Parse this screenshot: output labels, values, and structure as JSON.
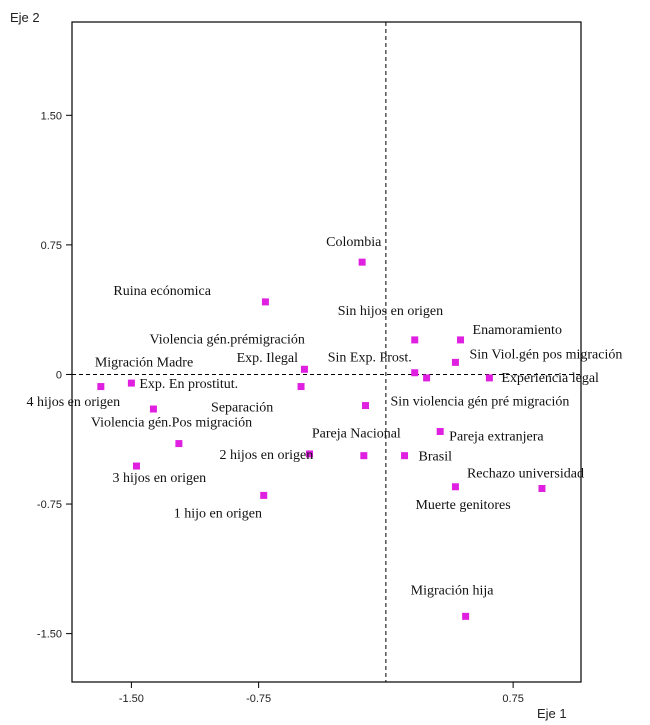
{
  "chart_data": {
    "type": "scatter",
    "xlabel": "Eje 1",
    "ylabel": "Eje 2",
    "xlim": [
      -1.85,
      1.15
    ],
    "ylim": [
      -1.78,
      2.04
    ],
    "x_ticks": [
      {
        "value": -1.5,
        "label": "-1.50"
      },
      {
        "value": -0.75,
        "label": "-0.75"
      },
      {
        "value": 0.75,
        "label": "0.75"
      }
    ],
    "y_ticks": [
      {
        "value": 1.5,
        "label": "1.50"
      },
      {
        "value": 0.75,
        "label": "0.75"
      },
      {
        "value": 0,
        "label": "0"
      },
      {
        "value": -0.75,
        "label": "-0.75"
      },
      {
        "value": -1.5,
        "label": "-1.50"
      }
    ],
    "reference_lines": {
      "x": 0,
      "y": 0,
      "style": "dashed"
    },
    "marker_color": "#e020e0",
    "points": [
      {
        "label": "Colombia",
        "x": -0.14,
        "y": 0.65
      },
      {
        "label": "Ruina ecónomica",
        "x": -0.71,
        "y": 0.42
      },
      {
        "label": "Sin hijos en origen",
        "x": 0.17,
        "y": 0.2
      },
      {
        "label": "Enamoramiento",
        "x": 0.44,
        "y": 0.2
      },
      {
        "label": "Sin Viol.gén pos migración",
        "x": 0.41,
        "y": 0.07
      },
      {
        "label": "Violencia gén.prémigración",
        "x": -0.48,
        "y": 0.03
      },
      {
        "label": "Sin Exp. Prost.",
        "x": 0.17,
        "y": 0.01
      },
      {
        "label": "Experiencia legal",
        "x": 0.61,
        "y": -0.02
      },
      {
        "label": "Exp. Ilegal",
        "x": 0.24,
        "y": -0.02
      },
      {
        "label": "Migración Madre",
        "x": -1.68,
        "y": -0.07
      },
      {
        "label": "Exp. En prostitut.",
        "x": -1.5,
        "y": -0.05
      },
      {
        "label": "Separación",
        "x": -0.5,
        "y": -0.07
      },
      {
        "label": "Sin violencia gén pré migración",
        "x": -0.12,
        "y": -0.18
      },
      {
        "label": "4 hijos en origen",
        "x": -1.37,
        "y": -0.2
      },
      {
        "label": "Violencia gén.Pos migración",
        "x": -1.22,
        "y": -0.4
      },
      {
        "label": "Pareja extranjera",
        "x": 0.32,
        "y": -0.33
      },
      {
        "label": "Pareja Nacional",
        "x": -0.13,
        "y": -0.47
      },
      {
        "label": "Brasil",
        "x": 0.11,
        "y": -0.47
      },
      {
        "label": "2 hijos en origen",
        "x": -0.45,
        "y": -0.46
      },
      {
        "label": "3 hijos en origen",
        "x": -1.47,
        "y": -0.53
      },
      {
        "label": "1 hijo en origen",
        "x": -0.72,
        "y": -0.7
      },
      {
        "label": "Rechazo universidad",
        "x": 0.92,
        "y": -0.66
      },
      {
        "label": "Muerte genitores",
        "x": 0.41,
        "y": -0.65
      },
      {
        "label": "Migración hija",
        "x": 0.47,
        "y": -1.4
      }
    ]
  }
}
